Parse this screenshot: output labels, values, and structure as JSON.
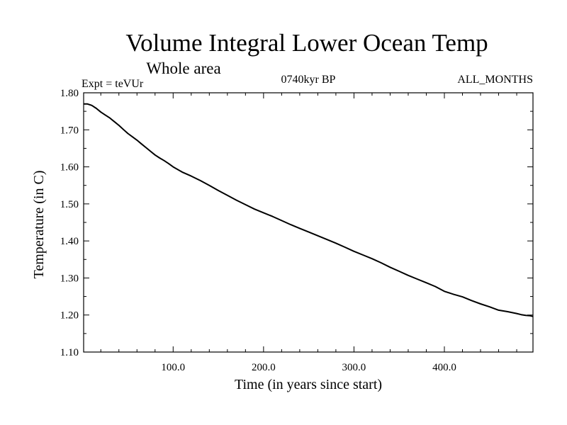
{
  "chart_data": {
    "type": "line",
    "title": "Volume Integral Lower Ocean Temp",
    "subtitle": "Whole area",
    "experiment": "Expt = teVUr",
    "period": "0740kyr BP",
    "months": "ALL_MONTHS",
    "xlabel": "Time (in years since start)",
    "ylabel": "Temperature (in C)",
    "xlim": [
      1,
      498
    ],
    "ylim": [
      1.1,
      1.8
    ],
    "xticks": [
      {
        "value": 100,
        "label": "100.0"
      },
      {
        "value": 200,
        "label": "200.0"
      },
      {
        "value": 300,
        "label": "300.0"
      },
      {
        "value": 400,
        "label": "400.0"
      }
    ],
    "yticks": [
      {
        "value": 1.1,
        "label": "1.10"
      },
      {
        "value": 1.2,
        "label": "1.20"
      },
      {
        "value": 1.3,
        "label": "1.30"
      },
      {
        "value": 1.4,
        "label": "1.40"
      },
      {
        "value": 1.5,
        "label": "1.50"
      },
      {
        "value": 1.6,
        "label": "1.60"
      },
      {
        "value": 1.7,
        "label": "1.70"
      },
      {
        "value": 1.8,
        "label": "1.80"
      }
    ],
    "grid": false,
    "series": [
      {
        "color": "#000000",
        "x": [
          1,
          5,
          10,
          15,
          20,
          25,
          30,
          35,
          40,
          45,
          50,
          55,
          60,
          65,
          70,
          75,
          80,
          85,
          90,
          95,
          100,
          110,
          120,
          130,
          140,
          150,
          160,
          170,
          180,
          190,
          200,
          210,
          220,
          230,
          240,
          250,
          260,
          270,
          280,
          290,
          300,
          310,
          320,
          330,
          340,
          350,
          360,
          370,
          380,
          390,
          400,
          410,
          420,
          430,
          440,
          450,
          460,
          470,
          480,
          485,
          490,
          495,
          498
        ],
        "y": [
          1.77,
          1.77,
          1.766,
          1.758,
          1.748,
          1.74,
          1.732,
          1.722,
          1.712,
          1.701,
          1.69,
          1.681,
          1.672,
          1.662,
          1.652,
          1.642,
          1.632,
          1.624,
          1.617,
          1.609,
          1.6,
          1.586,
          1.575,
          1.563,
          1.55,
          1.536,
          1.523,
          1.51,
          1.498,
          1.486,
          1.476,
          1.466,
          1.455,
          1.444,
          1.434,
          1.424,
          1.414,
          1.404,
          1.394,
          1.383,
          1.372,
          1.362,
          1.352,
          1.341,
          1.329,
          1.318,
          1.307,
          1.297,
          1.287,
          1.277,
          1.264,
          1.256,
          1.249,
          1.239,
          1.23,
          1.222,
          1.213,
          1.209,
          1.204,
          1.201,
          1.199,
          1.198,
          1.196
        ]
      }
    ]
  }
}
